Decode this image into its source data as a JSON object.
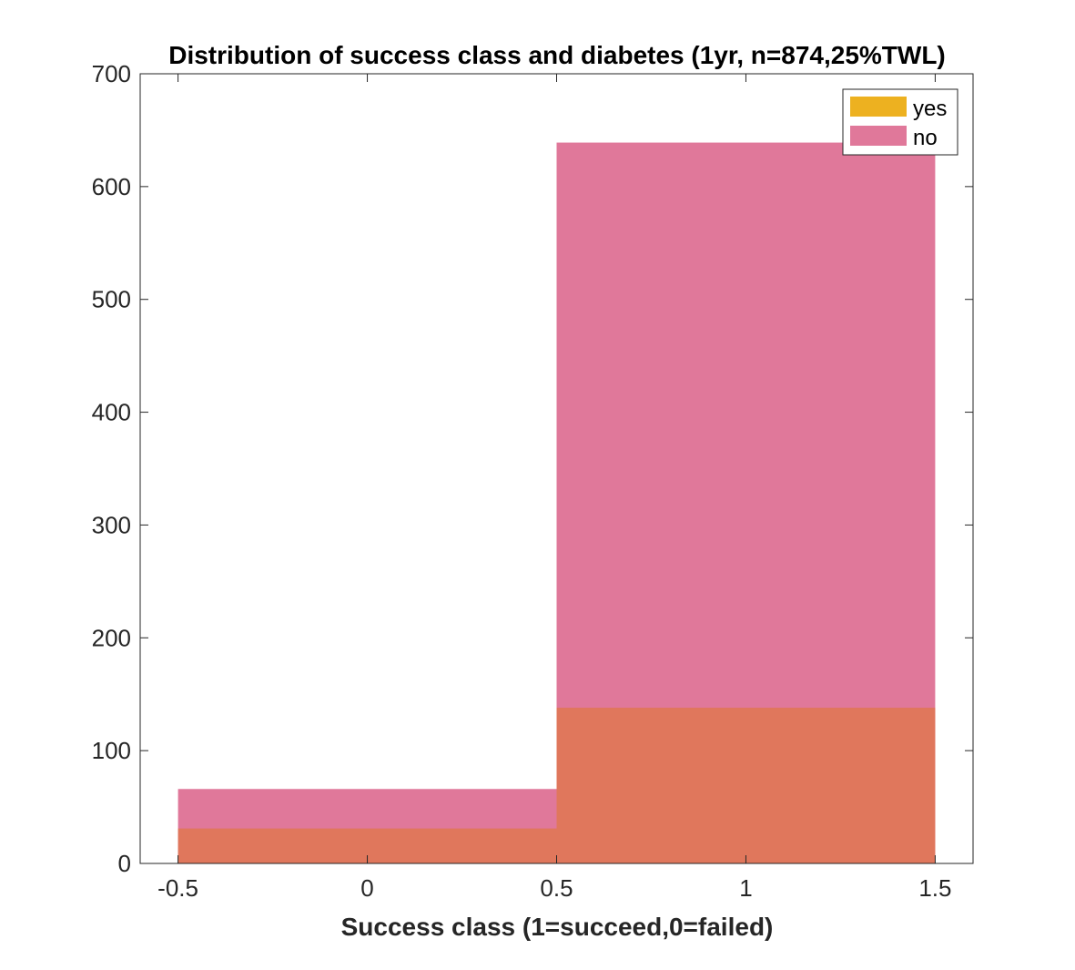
{
  "chart_data": {
    "type": "bar",
    "title": "Distribution of success class and diabetes (1yr, n=874,25%TWL)",
    "xlabel": "Success class (1=succeed,0=failed)",
    "ylabel": "",
    "xlim": [
      -0.6,
      1.6
    ],
    "ylim": [
      0,
      700
    ],
    "xticks": [
      -0.5,
      0,
      0.5,
      1,
      1.5
    ],
    "xtick_labels": [
      "-0.5",
      "0",
      "0.5",
      "1",
      "1.5"
    ],
    "yticks": [
      0,
      100,
      200,
      300,
      400,
      500,
      600,
      700
    ],
    "ytick_labels": [
      "0",
      "100",
      "200",
      "300",
      "400",
      "500",
      "600",
      "700"
    ],
    "bin_edges": [
      -0.5,
      0.5,
      1.5
    ],
    "categories": [
      "0",
      "1"
    ],
    "series": [
      {
        "name": "yes",
        "values": [
          31,
          138
        ],
        "color": "#EDB120"
      },
      {
        "name": "no",
        "values": [
          66,
          639
        ],
        "color": "#E0789A"
      }
    ],
    "overlap_color": "#E0775C",
    "legend_position": "top-right",
    "grid": false
  }
}
